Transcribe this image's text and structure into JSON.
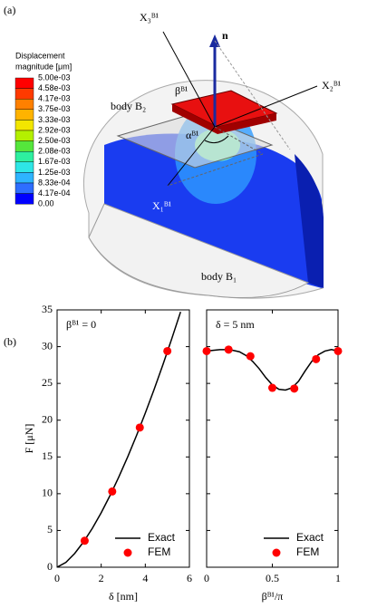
{
  "panel_a": {
    "label": "(a)",
    "legend_title_1": "Displacement",
    "legend_title_2": "magnitude [μm]",
    "colorbar": {
      "labels": [
        "5.00e-03",
        "4.58e-03",
        "4.17e-03",
        "3.75e-03",
        "3.33e-03",
        "2.92e-03",
        "2.50e-03",
        "2.08e-03",
        "1.67e-03",
        "1.25e-03",
        "8.33e-04",
        "4.17e-04",
        "0.00"
      ],
      "colors": [
        "#ff0000",
        "#ff3a00",
        "#ff8000",
        "#ffb300",
        "#f2e600",
        "#b4f000",
        "#55e63c",
        "#2ef0a0",
        "#2ee6e6",
        "#2eb4ff",
        "#2e6eff",
        "#0000ff"
      ]
    },
    "x3": "X₃ᴮ¹",
    "n": "n",
    "x2": "X₂ᴮ¹",
    "beta": "βᴮ¹",
    "body_b2": "body B₂",
    "alpha": "αᴮ¹",
    "x1": "X₁ᴮ¹",
    "body_b1": "body B₁"
  },
  "panel_b_label": "(b)",
  "chart_data": [
    {
      "type": "line",
      "annotation": "βᴮ¹ = 0",
      "xlabel": "δ [nm]",
      "ylabel": "F [μN]",
      "xlim": [
        0,
        6
      ],
      "xticks": [
        0,
        2,
        4,
        6
      ],
      "ylim": [
        0,
        35
      ],
      "yticks": [
        0,
        5,
        10,
        15,
        20,
        25,
        30,
        35
      ],
      "show_ytick_labels": true,
      "legend": "lower right",
      "series": [
        {
          "name": "Exact",
          "color": "#000000",
          "marker": "none",
          "x": [
            0,
            0.4,
            0.8,
            1.2,
            1.6,
            2.0,
            2.4,
            2.8,
            3.2,
            3.6,
            4.0,
            4.4,
            4.8,
            5.2,
            5.6
          ],
          "values": [
            0,
            0.66,
            1.88,
            3.45,
            5.3,
            7.41,
            9.75,
            12.28,
            15.0,
            17.9,
            20.97,
            24.19,
            27.56,
            31.08,
            34.73
          ]
        },
        {
          "name": "FEM",
          "color": "#ff0000",
          "marker": "circle",
          "x": [
            1.25,
            2.5,
            3.75,
            5
          ],
          "values": [
            3.6,
            10.3,
            19,
            29.4
          ]
        }
      ]
    },
    {
      "type": "line",
      "annotation": "δ = 5 nm",
      "xlabel": "βᴮ¹/π",
      "xlim": [
        0,
        1
      ],
      "xticks": [
        0,
        0.5,
        1
      ],
      "ylim": [
        0,
        35
      ],
      "yticks": [
        0,
        5,
        10,
        15,
        20,
        25,
        30,
        35
      ],
      "show_ytick_labels": false,
      "legend": "lower right",
      "series": [
        {
          "name": "Exact",
          "color": "#000000",
          "marker": "none",
          "x": [
            0,
            0.05,
            0.1,
            0.15,
            0.2,
            0.25,
            0.3,
            0.35,
            0.4,
            0.45,
            0.5,
            0.55,
            0.6,
            0.65,
            0.7,
            0.75,
            0.8,
            0.85,
            0.9,
            0.95,
            1
          ],
          "values": [
            29.4,
            29.5,
            29.6,
            29.6,
            29.5,
            29.3,
            28.8,
            28.0,
            27.0,
            25.8,
            24.8,
            24.2,
            24.1,
            24.4,
            25.3,
            26.7,
            28.0,
            28.9,
            29.4,
            29.6,
            29.4
          ]
        },
        {
          "name": "FEM",
          "color": "#ff0000",
          "marker": "circle",
          "x": [
            0,
            0.167,
            0.333,
            0.5,
            0.667,
            0.833,
            1
          ],
          "values": [
            29.4,
            29.6,
            28.7,
            24.4,
            24.3,
            28.3,
            29.4
          ]
        }
      ]
    }
  ]
}
